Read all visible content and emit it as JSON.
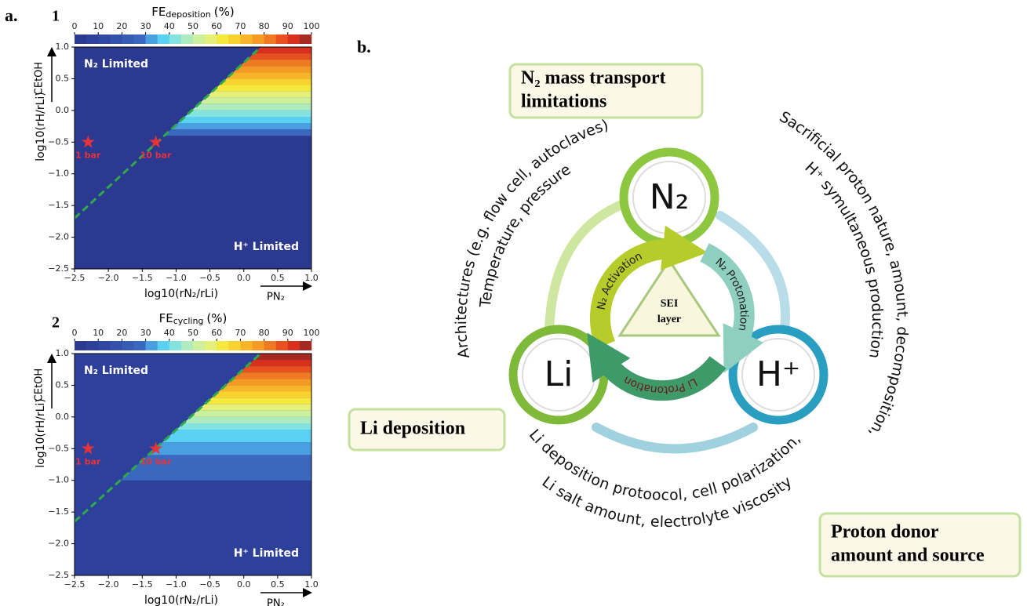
{
  "chart_data": [
    {
      "type": "contour",
      "panel_number": "1",
      "colorbar_label": {
        "main": "FE",
        "sub": "deposition",
        "unit": "(%)"
      },
      "colorbar_ticks": [
        0,
        10,
        20,
        30,
        40,
        50,
        60,
        70,
        80,
        90,
        100
      ],
      "levels": [
        0,
        5,
        10,
        15,
        20,
        25,
        30,
        35,
        40,
        45,
        50,
        55,
        60,
        65,
        70,
        75,
        80,
        85,
        90,
        95,
        100
      ],
      "colors": [
        "#2b3990",
        "#2d409a",
        "#3048a2",
        "#3352ab",
        "#365cb4",
        "#3a68be",
        "#4a9fe0",
        "#5ad0f2",
        "#84e3de",
        "#aeecc0",
        "#cdf09d",
        "#e4f078",
        "#f4e93c",
        "#f8d22f",
        "#f8b52a",
        "#f59a25",
        "#f07a22",
        "#e8501f",
        "#d8301c",
        "#a52a22"
      ],
      "background_value": 3,
      "rows": [
        {
          "y": [
            1.0,
            0.9
          ],
          "value": 92
        },
        {
          "y": [
            0.9,
            0.8
          ],
          "value": 87
        },
        {
          "y": [
            0.8,
            0.7
          ],
          "value": 82
        },
        {
          "y": [
            0.7,
            0.6
          ],
          "value": 77
        },
        {
          "y": [
            0.6,
            0.5
          ],
          "value": 72
        },
        {
          "y": [
            0.5,
            0.4
          ],
          "value": 67
        },
        {
          "y": [
            0.4,
            0.3
          ],
          "value": 62
        },
        {
          "y": [
            0.3,
            0.2
          ],
          "value": 57
        },
        {
          "y": [
            0.2,
            0.1
          ],
          "value": 52
        },
        {
          "y": [
            0.1,
            0.0
          ],
          "value": 47
        },
        {
          "y": [
            0.0,
            -0.1
          ],
          "value": 42
        },
        {
          "y": [
            -0.1,
            -0.2
          ],
          "value": 37
        },
        {
          "y": [
            -0.2,
            -0.3
          ],
          "value": 33
        },
        {
          "y": [
            -0.3,
            -0.4
          ],
          "value": 28
        }
      ],
      "boundary": {
        "x": [
          -2.5,
          0.25
        ],
        "y": [
          -1.7,
          1.0
        ],
        "color": "#2eaa4a"
      },
      "stars": [
        {
          "x": -2.3,
          "y": -0.5,
          "label": "1 bar"
        },
        {
          "x": -1.3,
          "y": -0.5,
          "label": "10 bar"
        }
      ],
      "star_color": "#e8323a",
      "annotations": [
        "N₂ Limited",
        "H⁺ Limited"
      ],
      "x_label": "log10(rN₂/rLi)",
      "y_label": "log10(rH/rLi)",
      "x_arrow_label": "PN₂",
      "y_arrow_label": "CEtOH",
      "xlim": [
        -2.5,
        1.0
      ],
      "ylim": [
        -2.5,
        1.0
      ],
      "xticks": [
        {
          "value": -2.5,
          "label": "−2.5"
        },
        {
          "value": -2.0,
          "label": "−2.0"
        },
        {
          "value": -1.5,
          "label": "−1.5"
        },
        {
          "value": -1.0,
          "label": "−1.0"
        },
        {
          "value": -0.5,
          "label": "−0.5"
        },
        {
          "value": 0,
          "label": "0.0"
        },
        {
          "value": 0.5,
          "label": "0.5"
        },
        {
          "value": 1.0,
          "label": "1.0"
        }
      ],
      "yticks": [
        {
          "value": 1.0,
          "label": "1.0"
        },
        {
          "value": 0.5,
          "label": "0.5"
        },
        {
          "value": 0,
          "label": "0.0"
        },
        {
          "value": -0.5,
          "label": "−0.5"
        },
        {
          "value": -1.0,
          "label": "−1.0"
        },
        {
          "value": -1.5,
          "label": "−1.5"
        },
        {
          "value": -2.0,
          "label": "−2.0"
        },
        {
          "value": -2.5,
          "label": "−2.5"
        }
      ]
    },
    {
      "type": "contour",
      "panel_number": "2",
      "colorbar_label": {
        "main": "FE",
        "sub": "cycling",
        "unit": "(%)"
      },
      "colorbar_ticks": [
        0,
        10,
        20,
        30,
        40,
        50,
        60,
        70,
        80,
        90,
        100
      ],
      "levels": [
        0,
        5,
        10,
        15,
        20,
        25,
        30,
        35,
        40,
        45,
        50,
        55,
        60,
        65,
        70,
        75,
        80,
        85,
        90,
        95,
        100
      ],
      "colors": [
        "#2b3990",
        "#2d409a",
        "#3048a2",
        "#3352ab",
        "#365cb4",
        "#3a68be",
        "#4a9fe0",
        "#5ad0f2",
        "#84e3de",
        "#aeecc0",
        "#cdf09d",
        "#e4f078",
        "#f4e93c",
        "#f8d22f",
        "#f8b52a",
        "#f59a25",
        "#f07a22",
        "#e8501f",
        "#d8301c",
        "#a52a22"
      ],
      "background_value": 8,
      "rows": [
        {
          "y": [
            1.0,
            0.9
          ],
          "value": 97
        },
        {
          "y": [
            0.9,
            0.8
          ],
          "value": 92
        },
        {
          "y": [
            0.8,
            0.7
          ],
          "value": 87
        },
        {
          "y": [
            0.7,
            0.6
          ],
          "value": 82
        },
        {
          "y": [
            0.6,
            0.5
          ],
          "value": 77
        },
        {
          "y": [
            0.5,
            0.4
          ],
          "value": 72
        },
        {
          "y": [
            0.4,
            0.3
          ],
          "value": 67
        },
        {
          "y": [
            0.3,
            0.2
          ],
          "value": 62
        },
        {
          "y": [
            0.2,
            0.1
          ],
          "value": 57
        },
        {
          "y": [
            0.1,
            0.0
          ],
          "value": 52
        },
        {
          "y": [
            0.0,
            -0.1
          ],
          "value": 47
        },
        {
          "y": [
            -0.1,
            -0.2
          ],
          "value": 42
        },
        {
          "y": [
            -0.2,
            -0.4
          ],
          "value": 37
        },
        {
          "y": [
            -0.4,
            -0.6
          ],
          "value": 32
        },
        {
          "y": [
            -0.6,
            -1.0
          ],
          "value": 27
        }
      ],
      "boundary": {
        "x": [
          -2.5,
          0.25
        ],
        "y": [
          -1.65,
          1.0
        ],
        "color": "#2eaa4a"
      },
      "stars": [
        {
          "x": -2.3,
          "y": -0.5,
          "label": "1 bar"
        },
        {
          "x": -1.3,
          "y": -0.5,
          "label": "10 bar"
        }
      ],
      "star_color": "#e8323a",
      "annotations": [
        "N₂ Limited",
        "H⁺ Limited"
      ],
      "x_label": "log10(rN₂/rLi)",
      "y_label": "log10(rH/rLi)",
      "x_arrow_label": "PN₂",
      "y_arrow_label": "CEtOH",
      "xlim": [
        -2.5,
        1.0
      ],
      "ylim": [
        -2.5,
        1.0
      ],
      "xticks": [
        {
          "value": -2.5,
          "label": "−2.5"
        },
        {
          "value": -2.0,
          "label": "−2.0"
        },
        {
          "value": -1.5,
          "label": "−1.5"
        },
        {
          "value": -1.0,
          "label": "−1.0"
        },
        {
          "value": -0.5,
          "label": "−0.5"
        },
        {
          "value": 0,
          "label": "0.0"
        },
        {
          "value": 0.5,
          "label": "0.5"
        },
        {
          "value": 1.0,
          "label": "1.0"
        }
      ],
      "yticks": [
        {
          "value": 1.0,
          "label": "1.0"
        },
        {
          "value": 0.5,
          "label": "0.5"
        },
        {
          "value": 0,
          "label": "0.0"
        },
        {
          "value": -0.5,
          "label": "−0.5"
        },
        {
          "value": -1.0,
          "label": "−1.0"
        },
        {
          "value": -1.5,
          "label": "−1.5"
        },
        {
          "value": -2.0,
          "label": "−2.0"
        },
        {
          "value": -2.5,
          "label": "−2.5"
        }
      ]
    }
  ],
  "panel_a_label": "a.",
  "diagram": {
    "panel_label": "b.",
    "nodes": [
      "N₂",
      "Li",
      "H⁺"
    ],
    "center": [
      "SEI",
      "layer"
    ],
    "inner_arrows": [
      "N₂ Activation",
      "N₂ Protonation",
      "Li Protonation"
    ],
    "boxes": [
      [
        "N₂ mass transport",
        "limitations"
      ],
      [
        "Li deposition"
      ],
      [
        "Proton donor",
        "amount and source"
      ]
    ],
    "arc_texts": [
      "Architectures (e.g. flow cell, autoclaves)",
      "Temperature, pressure",
      "Sacrificial proton nature, amount, decomposition,",
      "H⁺ symultaneous production",
      "Li deposition protoocol, cell polarization,",
      "Li salt amount, electrolyte viscosity"
    ]
  }
}
